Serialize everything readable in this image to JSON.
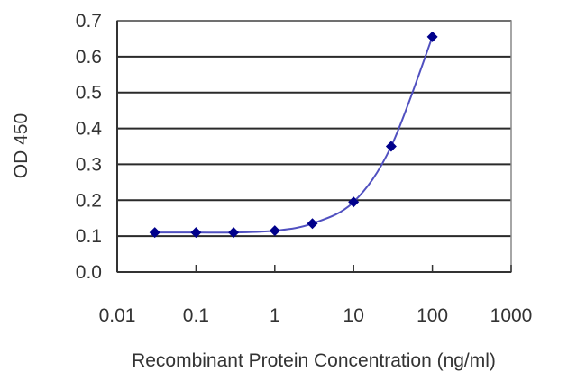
{
  "chart_data": {
    "type": "line",
    "title": "",
    "xlabel": "Recombinant Protein Concentration (ng/ml)",
    "ylabel": "OD 450",
    "xscale": "log",
    "xlim": [
      0.01,
      1000
    ],
    "ylim": [
      0.0,
      0.7
    ],
    "x_ticks": [
      "0.01",
      "0.1",
      "1",
      "10",
      "100",
      "1000"
    ],
    "y_ticks": [
      "0.0",
      "0.1",
      "0.2",
      "0.3",
      "0.4",
      "0.5",
      "0.6",
      "0.7"
    ],
    "grid": "horizontal",
    "legend": "none",
    "series": [
      {
        "name": "OD 450",
        "color": "#00008b",
        "line_color": "#5050c0",
        "marker": "diamond",
        "x": [
          0.03,
          0.1,
          0.3,
          1,
          3,
          10,
          30,
          100
        ],
        "values": [
          0.11,
          0.11,
          0.11,
          0.115,
          0.135,
          0.195,
          0.35,
          0.655
        ]
      }
    ]
  }
}
